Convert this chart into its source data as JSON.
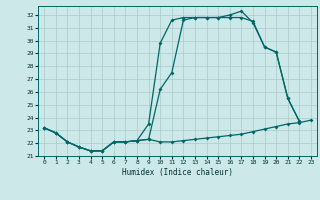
{
  "xlabel": "Humidex (Indice chaleur)",
  "bg_color": "#cce8e8",
  "grid_color": "#aacccc",
  "line_color": "#006666",
  "xlim": [
    -0.5,
    23.5
  ],
  "ylim": [
    21.0,
    32.7
  ],
  "xticks": [
    0,
    1,
    2,
    3,
    4,
    5,
    6,
    7,
    8,
    9,
    10,
    11,
    12,
    13,
    14,
    15,
    16,
    17,
    18,
    19,
    20,
    21,
    22,
    23
  ],
  "yticks": [
    21,
    22,
    23,
    24,
    25,
    26,
    27,
    28,
    29,
    30,
    31,
    32
  ],
  "line1_x": [
    0,
    1,
    2,
    3,
    4,
    5,
    6,
    7,
    8,
    9,
    10,
    11,
    12,
    13,
    14,
    15,
    16,
    17,
    18,
    19,
    20,
    21,
    22,
    23
  ],
  "line1_y": [
    23.2,
    22.8,
    22.1,
    21.7,
    21.4,
    21.4,
    22.1,
    22.1,
    22.2,
    22.3,
    22.1,
    22.1,
    22.2,
    22.3,
    22.4,
    22.5,
    22.6,
    22.7,
    22.9,
    23.1,
    23.3,
    23.5,
    23.6,
    23.8
  ],
  "line2_x": [
    0,
    1,
    2,
    3,
    4,
    5,
    6,
    7,
    8,
    9,
    10,
    11,
    12,
    13,
    14,
    15,
    16,
    17,
    18,
    19,
    20,
    21,
    22,
    23
  ],
  "line2_y": [
    23.2,
    22.8,
    22.1,
    21.7,
    21.4,
    21.4,
    22.1,
    22.1,
    22.2,
    22.3,
    26.2,
    27.5,
    31.6,
    31.8,
    31.8,
    31.8,
    31.8,
    31.8,
    31.5,
    29.5,
    29.1,
    25.5,
    23.7,
    null
  ],
  "line3_x": [
    0,
    1,
    2,
    3,
    4,
    5,
    6,
    7,
    8,
    9,
    10,
    11,
    12,
    13,
    14,
    15,
    16,
    17,
    18,
    19,
    20,
    21,
    22,
    23
  ],
  "line3_y": [
    23.2,
    22.8,
    22.1,
    21.7,
    21.4,
    21.4,
    22.1,
    22.1,
    22.2,
    23.5,
    29.8,
    31.6,
    31.8,
    31.8,
    31.8,
    31.8,
    32.0,
    32.3,
    31.4,
    29.5,
    29.1,
    25.5,
    23.7,
    null
  ]
}
